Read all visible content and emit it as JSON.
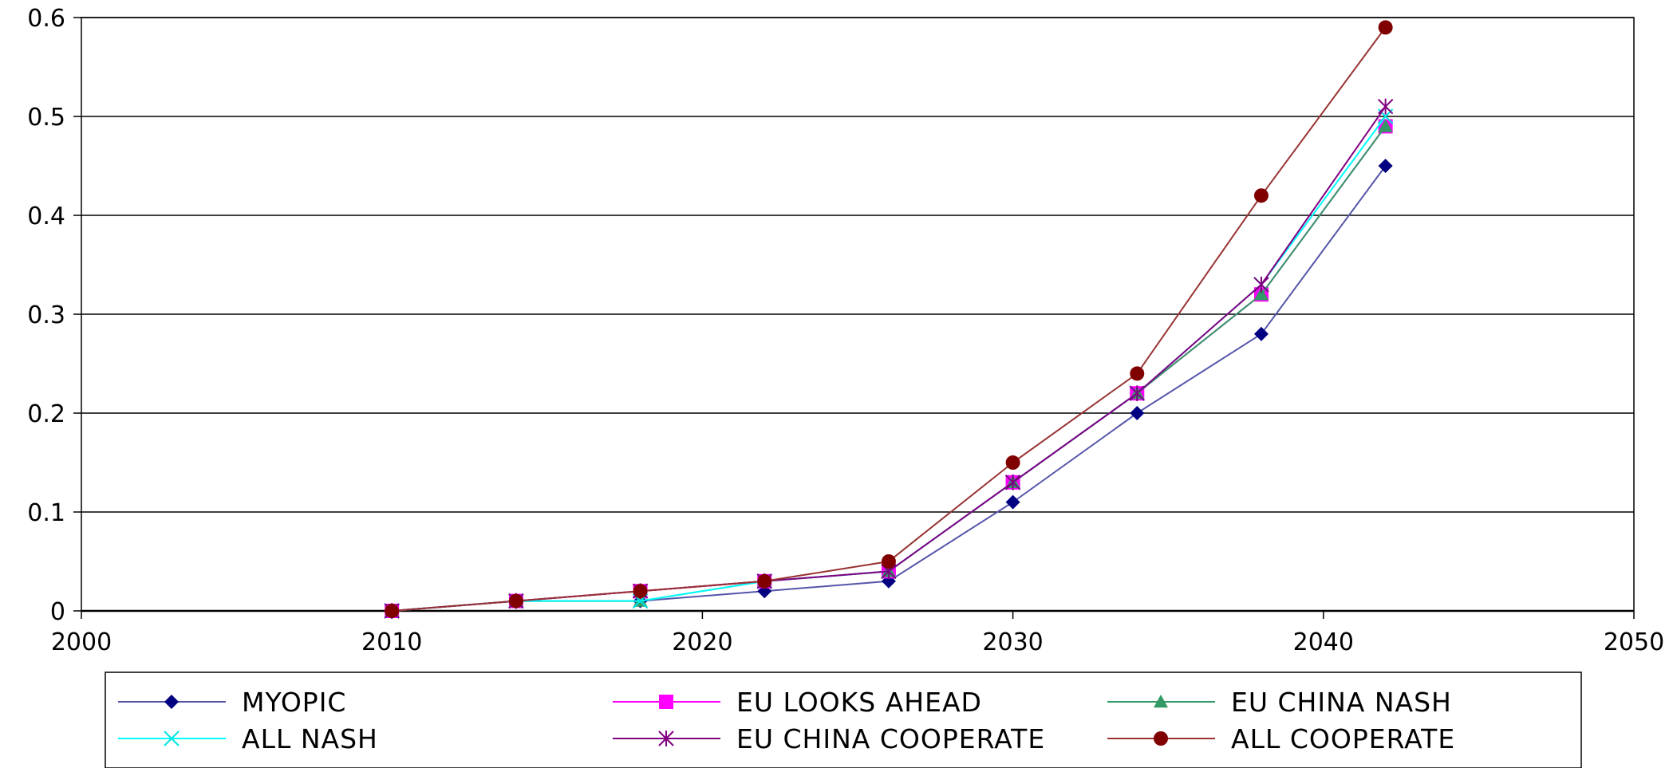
{
  "chart_data": {
    "type": "line",
    "title": "",
    "xlabel": "",
    "ylabel": "",
    "xlim": [
      2000,
      2050
    ],
    "ylim": [
      0,
      0.6
    ],
    "x_ticks": [
      "2000",
      "2010",
      "2020",
      "2030",
      "2040",
      "2050"
    ],
    "y_ticks": [
      "0",
      "0.1",
      "0.2",
      "0.3",
      "0.4",
      "0.5",
      "0.6"
    ],
    "grid": "horizontal",
    "legend_position": "bottom",
    "x": [
      2010,
      2014,
      2018,
      2022,
      2026,
      2030,
      2034,
      2038,
      2042
    ],
    "series": [
      {
        "name": "MYOPIC",
        "color": "#000080",
        "marker": "diamond",
        "line_color": "#5555aa",
        "values": [
          0,
          0.01,
          0.01,
          0.02,
          0.03,
          0.11,
          0.2,
          0.28,
          0.45
        ]
      },
      {
        "name": "EU LOOKS AHEAD",
        "color": "#ff00ff",
        "marker": "square",
        "line_color": "#ff00ff",
        "values": [
          0,
          0.01,
          0.02,
          0.03,
          0.04,
          0.13,
          0.22,
          0.32,
          0.49
        ]
      },
      {
        "name": "EU CHINA NASH",
        "color": "#339966",
        "marker": "triangle",
        "line_color": "#339966",
        "values": [
          0,
          0.01,
          0.01,
          0.03,
          0.04,
          0.13,
          0.22,
          0.32,
          0.49
        ]
      },
      {
        "name": "ALL NASH",
        "color": "#00e5e5",
        "marker": "x",
        "line_color": "#00ffff",
        "values": [
          0,
          0.01,
          0.01,
          0.03,
          0.04,
          0.13,
          0.22,
          0.33,
          0.5
        ]
      },
      {
        "name": "EU CHINA COOPERATE",
        "color": "#800080",
        "marker": "star",
        "line_color": "#800080",
        "values": [
          0,
          0.01,
          0.02,
          0.03,
          0.04,
          0.13,
          0.22,
          0.33,
          0.51
        ]
      },
      {
        "name": "ALL COOPERATE",
        "color": "#800000",
        "marker": "circle",
        "line_color": "#993333",
        "values": [
          0,
          0.01,
          0.02,
          0.03,
          0.05,
          0.15,
          0.24,
          0.42,
          0.59
        ]
      }
    ]
  }
}
